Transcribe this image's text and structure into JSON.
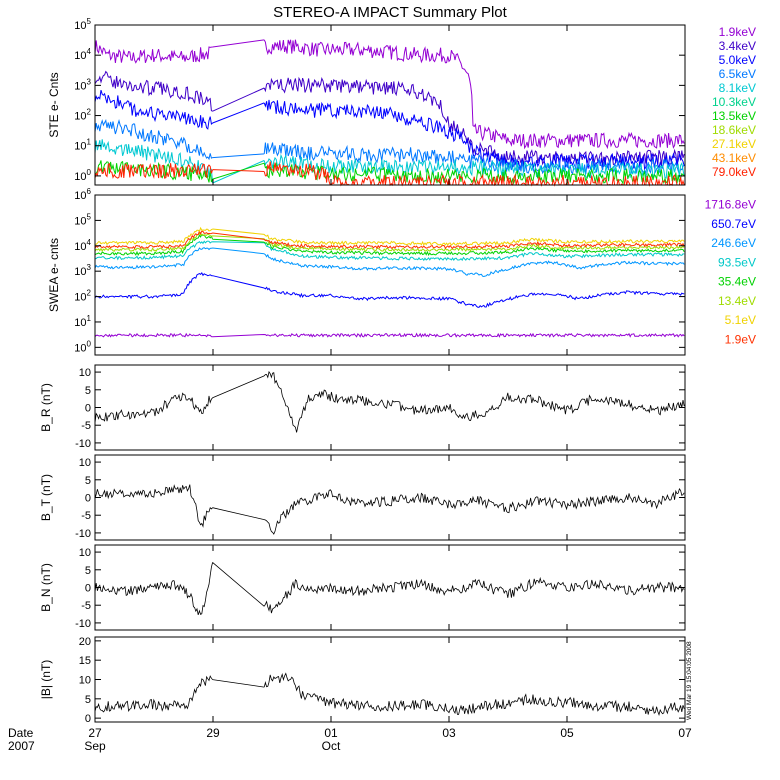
{
  "title": "STEREO-A IMPACT Summary Plot",
  "side_stamp": "Wed Mar 19 15:04:05 2008",
  "x_axis": {
    "date_label": "Date",
    "year_label": "2007",
    "ticks": [
      {
        "day": 27,
        "label": "27",
        "sub": "Sep"
      },
      {
        "day": 29,
        "label": "29",
        "sub": ""
      },
      {
        "day": 31,
        "label": "01",
        "sub": "Oct"
      },
      {
        "day": 33,
        "label": "03",
        "sub": ""
      },
      {
        "day": 35,
        "label": "05",
        "sub": ""
      },
      {
        "day": 37,
        "label": "07",
        "sub": ""
      }
    ],
    "range": [
      27,
      37
    ],
    "gap": [
      29.0,
      29.85
    ]
  },
  "chart_data": [
    {
      "type": "line",
      "ylabel": "STE e- Cnts",
      "log": true,
      "ylim": [
        0.5,
        100000
      ],
      "ytick_exponents": [
        0,
        1,
        2,
        3,
        4,
        5
      ],
      "legend": [
        {
          "name": "1.9keV",
          "color": "#9400d3"
        },
        {
          "name": "3.4keV",
          "color": "#3f00c8"
        },
        {
          "name": "5.0keV",
          "color": "#0000ff"
        },
        {
          "name": "6.5keV",
          "color": "#0078ff"
        },
        {
          "name": "8.1keV",
          "color": "#00c8d2"
        },
        {
          "name": "10.3keV",
          "color": "#00d28c"
        },
        {
          "name": "13.5keV",
          "color": "#00d200"
        },
        {
          "name": "18.6keV",
          "color": "#a0dc00"
        },
        {
          "name": "27.1keV",
          "color": "#f0d200"
        },
        {
          "name": "43.1keV",
          "color": "#ff8c00"
        },
        {
          "name": "79.0keV",
          "color": "#ff2000"
        }
      ],
      "series": [
        {
          "name": "1.9keV",
          "color": "#9400d3",
          "x": [
            27,
            27.2,
            27.6,
            28.0,
            28.5,
            29.0,
            29.85,
            30.3,
            30.8,
            31.5,
            32.5,
            33.0,
            33.4,
            34,
            35,
            36,
            37
          ],
          "y": [
            20000,
            10000,
            8000,
            10000,
            8000,
            12000,
            20000,
            20000,
            15000,
            15000,
            10000,
            10000,
            30,
            15,
            15,
            15,
            15
          ]
        },
        {
          "name": "3.4keV",
          "color": "#3f00c8",
          "x": [
            27,
            27.5,
            28,
            28.5,
            29.0,
            29.85,
            30.3,
            31,
            32,
            32.6,
            33.0,
            33.4,
            34,
            35,
            36,
            37
          ],
          "y": [
            2000,
            1000,
            800,
            600,
            200,
            1000,
            1000,
            1000,
            800,
            500,
            50,
            8,
            4,
            4,
            4,
            4
          ]
        },
        {
          "name": "5.0keV",
          "color": "#0000ff",
          "x": [
            27,
            27.5,
            28,
            29.0,
            29.85,
            30.5,
            31.5,
            32.6,
            33.4,
            34,
            35,
            36,
            37
          ],
          "y": [
            500,
            200,
            100,
            60,
            200,
            150,
            150,
            50,
            6,
            3,
            3,
            3,
            3
          ]
        },
        {
          "name": "6.5keV",
          "color": "#0078ff",
          "x": [
            27,
            28,
            29.0,
            29.85,
            30.5,
            31.5,
            32.6,
            33.4,
            34,
            35,
            37
          ],
          "y": [
            50,
            20,
            3,
            8,
            6,
            5,
            5,
            3,
            2,
            2,
            2
          ]
        },
        {
          "name": "8.1keV",
          "color": "#00c8d2",
          "x": [
            27,
            28,
            29.0,
            29.85,
            31,
            33,
            35,
            37
          ],
          "y": [
            10,
            5,
            1,
            3,
            2,
            2,
            1.5,
            1.5
          ]
        },
        {
          "name": "13.5keV",
          "color": "#00d200",
          "x": [
            27,
            28,
            29.0,
            29.85,
            31,
            33,
            35,
            37
          ],
          "y": [
            2,
            1.5,
            1,
            1.5,
            1.2,
            1,
            1,
            1
          ]
        },
        {
          "name": "79.0keV",
          "color": "#ff2000",
          "x": [
            29.85,
            30.0,
            30.3,
            30.6,
            30.9,
            31.0,
            37
          ],
          "y": [
            1.5,
            2,
            1.5,
            1.5,
            1,
            0.6,
            0.6
          ]
        }
      ]
    },
    {
      "type": "line",
      "ylabel": "SWEA e- cnts",
      "log": true,
      "ylim": [
        0.5,
        1000000
      ],
      "ytick_exponents": [
        0,
        1,
        2,
        3,
        4,
        5,
        6
      ],
      "legend": [
        {
          "name": "1716.8eV",
          "color": "#9400d3"
        },
        {
          "name": "650.7eV",
          "color": "#0000ff"
        },
        {
          "name": "246.6eV",
          "color": "#0096ff"
        },
        {
          "name": "93.5eV",
          "color": "#00c8c8"
        },
        {
          "name": "35.4eV",
          "color": "#00d200"
        },
        {
          "name": "13.4eV",
          "color": "#a0dc00"
        },
        {
          "name": "5.1eV",
          "color": "#f0d200"
        },
        {
          "name": "1.9eV",
          "color": "#ff3000"
        }
      ],
      "series": [
        {
          "name": "1716.8eV",
          "color": "#9400d3",
          "x": [
            27,
            28,
            29.0,
            29.85,
            31,
            33,
            35,
            37
          ],
          "y": [
            3,
            3,
            3,
            3,
            3,
            3,
            3,
            3
          ]
        },
        {
          "name": "650.7eV",
          "color": "#0000ff",
          "x": [
            27,
            27.5,
            28,
            28.5,
            28.8,
            29.0,
            29.85,
            30.0,
            30.5,
            31,
            31.5,
            32,
            32.5,
            33,
            33.3,
            33.6,
            34,
            34.4,
            34.8,
            35.2,
            35.6,
            36,
            36.5,
            37
          ],
          "y": [
            100,
            100,
            100,
            120,
            800,
            700,
            250,
            160,
            110,
            110,
            80,
            90,
            90,
            80,
            50,
            40,
            80,
            120,
            130,
            80,
            120,
            150,
            130,
            120
          ]
        },
        {
          "name": "246.6eV",
          "color": "#0096ff",
          "x": [
            27,
            27.5,
            28,
            28.5,
            28.8,
            29.0,
            29.85,
            30.0,
            30.5,
            31,
            31.5,
            32,
            32.5,
            33,
            33.3,
            33.6,
            34,
            34.4,
            34.8,
            35.2,
            35.6,
            36,
            36.5,
            37
          ],
          "y": [
            1500,
            1400,
            1500,
            1800,
            8000,
            8000,
            5000,
            3000,
            1600,
            1500,
            1200,
            1300,
            1300,
            1200,
            800,
            700,
            1200,
            2000,
            2200,
            1300,
            1800,
            2200,
            2000,
            2000
          ]
        },
        {
          "name": "93.5eV",
          "color": "#00c8c8",
          "x": [
            27,
            27.5,
            28,
            28.5,
            28.8,
            29.0,
            29.85,
            30.0,
            30.5,
            31,
            32,
            33,
            34,
            34.4,
            35,
            35.6,
            36,
            37
          ],
          "y": [
            3500,
            3300,
            3400,
            4000,
            14000,
            13000,
            12000,
            7000,
            4000,
            3500,
            3200,
            3000,
            3300,
            5000,
            3800,
            4200,
            4500,
            4500
          ]
        },
        {
          "name": "35.4eV",
          "color": "#00d200",
          "x": [
            27,
            28,
            28.5,
            28.8,
            29.0,
            29.85,
            30.0,
            30.5,
            31,
            32,
            33,
            34,
            34.4,
            35,
            36,
            37
          ],
          "y": [
            5000,
            5000,
            6000,
            25000,
            20000,
            15000,
            9000,
            6000,
            5500,
            5000,
            5000,
            5500,
            8000,
            6000,
            6500,
            6500
          ]
        },
        {
          "name": "13.4eV",
          "color": "#a0dc00",
          "x": [
            27,
            28,
            28.5,
            28.8,
            29.0,
            29.85,
            30.0,
            30.5,
            31,
            32,
            33,
            34,
            34.4,
            35,
            36,
            37
          ],
          "y": [
            7000,
            7000,
            8000,
            30000,
            25000,
            18000,
            11000,
            8000,
            7500,
            7000,
            7000,
            7500,
            10000,
            8000,
            8500,
            8500
          ]
        },
        {
          "name": "1.9eV",
          "color": "#ff3000",
          "x": [
            27,
            28,
            28.5,
            28.8,
            29.0,
            29.85,
            30.0,
            30.5,
            31,
            32,
            33,
            34,
            34.4,
            35,
            36,
            37
          ],
          "y": [
            9000,
            9000,
            10000,
            35000,
            30000,
            20000,
            13000,
            10000,
            9500,
            9000,
            9000,
            9500,
            13000,
            10000,
            11000,
            11000
          ]
        },
        {
          "name": "5.1eV",
          "color": "#f0d200",
          "x": [
            27,
            28,
            28.5,
            28.8,
            29.0,
            29.85,
            30.0,
            30.5,
            31,
            32,
            33,
            34,
            34.4,
            35,
            36,
            37
          ],
          "y": [
            13000,
            13000,
            15000,
            45000,
            40000,
            28000,
            18000,
            14000,
            13000,
            13000,
            12000,
            13000,
            18000,
            14000,
            15000,
            15000
          ]
        }
      ]
    },
    {
      "type": "line",
      "ylabel": "B_R (nT)",
      "ylim": [
        -12,
        12
      ],
      "yticks": [
        10,
        5,
        0,
        -5,
        -10
      ],
      "series": [
        {
          "name": "B_R",
          "color": "#000000",
          "x": [
            27,
            27.5,
            28,
            28.3,
            28.6,
            28.8,
            29.0,
            29.3,
            29.6,
            29.8,
            30.0,
            30.2,
            30.4,
            30.6,
            30.8,
            31.0,
            31.5,
            32,
            32.5,
            33,
            33.3,
            33.7,
            34,
            34.5,
            35,
            35.5,
            36,
            36.5,
            37
          ],
          "y": [
            -3,
            -2,
            -1.5,
            2,
            3,
            -2,
            4,
            1,
            6,
            8,
            10,
            3,
            -7,
            2,
            4,
            3,
            2,
            1,
            -1,
            0,
            -3,
            -1,
            3,
            2,
            -1,
            3,
            1,
            -1,
            1
          ]
        }
      ]
    },
    {
      "type": "line",
      "ylabel": "B_T (nT)",
      "ylim": [
        -12,
        12
      ],
      "yticks": [
        10,
        5,
        0,
        -5,
        -10
      ],
      "series": [
        {
          "name": "B_T",
          "color": "#000000",
          "x": [
            27,
            27.5,
            28,
            28.3,
            28.6,
            28.8,
            29.0,
            29.3,
            29.6,
            29.8,
            30.0,
            30.2,
            30.4,
            30.6,
            30.8,
            31.0,
            31.5,
            32,
            32.5,
            33,
            33.5,
            34,
            34.5,
            35,
            35.5,
            36,
            36.5,
            37
          ],
          "y": [
            1,
            1.5,
            1,
            2,
            3,
            -8,
            -2,
            -6,
            0,
            -4,
            -10,
            -5,
            -2,
            -1,
            0,
            1,
            -2,
            -1,
            0,
            -2,
            -1,
            -3,
            -1,
            -2,
            -1,
            0,
            -2,
            2
          ]
        }
      ]
    },
    {
      "type": "line",
      "ylabel": "B_N (nT)",
      "ylim": [
        -12,
        12
      ],
      "yticks": [
        10,
        5,
        0,
        -5,
        -10
      ],
      "series": [
        {
          "name": "B_N",
          "color": "#000000",
          "x": [
            27,
            27.5,
            28,
            28.3,
            28.6,
            28.8,
            29.0,
            29.3,
            29.6,
            29.8,
            30.0,
            30.2,
            30.4,
            30.6,
            30.8,
            31.0,
            31.5,
            32,
            32.5,
            33,
            33.5,
            34,
            34.5,
            35,
            35.5,
            36,
            36.5,
            37
          ],
          "y": [
            0,
            -1,
            0,
            1,
            -2,
            -9,
            8,
            -3,
            2,
            -4,
            -6,
            -3,
            1,
            -1,
            0,
            0,
            -1,
            0,
            1,
            -1,
            1,
            -2,
            2,
            0,
            1,
            -1,
            0,
            0
          ]
        }
      ]
    },
    {
      "type": "line",
      "ylabel": "|B| (nT)",
      "ylim": [
        -1,
        21
      ],
      "yticks": [
        20,
        15,
        10,
        5,
        0
      ],
      "series": [
        {
          "name": "|B|",
          "color": "#000000",
          "x": [
            27,
            27.5,
            28,
            28.3,
            28.6,
            28.8,
            29.0,
            29.3,
            29.6,
            29.85,
            30.0,
            30.3,
            30.5,
            30.8,
            31.0,
            31.5,
            32,
            32.5,
            33,
            33.3,
            33.6,
            34,
            34.4,
            34.8,
            35.2,
            35.6,
            36,
            36.5,
            37
          ],
          "y": [
            3,
            3,
            3.5,
            3,
            4,
            9,
            10,
            6,
            7,
            9,
            10,
            11,
            6,
            5,
            4,
            3,
            3,
            3.5,
            2.5,
            2,
            3,
            4,
            5,
            4,
            4,
            3,
            3,
            2,
            3
          ]
        }
      ]
    }
  ]
}
